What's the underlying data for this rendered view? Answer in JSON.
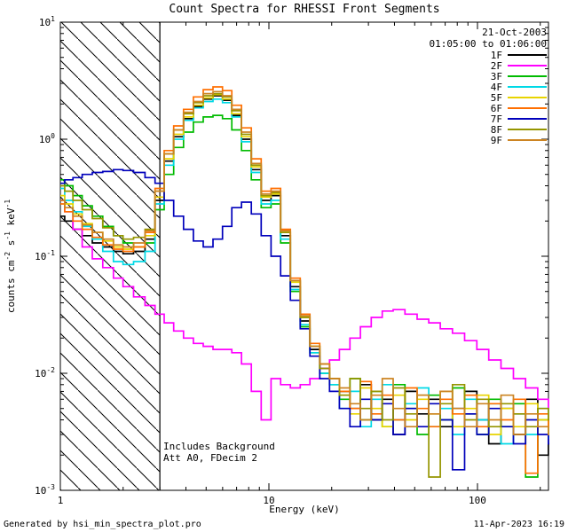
{
  "title": "Count Spectra for RHESSI Front Segments",
  "footer": {
    "left": "Generated by hsi_min_spectra_plot.pro",
    "right": "11-Apr-2023 16:19"
  },
  "chart_data": {
    "type": "line",
    "scale": "log-log",
    "title": "Count Spectra for RHESSI Front Segments",
    "xlabel": "Energy (keV)",
    "ylabel_segments": [
      {
        "t": "counts cm"
      },
      {
        "sup": "-2"
      },
      {
        "t": " s"
      },
      {
        "sup": "-1"
      },
      {
        "t": " keV"
      },
      {
        "sup": "-1"
      }
    ],
    "xlim": [
      1,
      219
    ],
    "ylim": [
      0.001,
      10
    ],
    "x_ticks": [
      {
        "v": 1,
        "label": "1"
      },
      {
        "v": 10,
        "label": "10"
      },
      {
        "v": 100,
        "label": "100"
      }
    ],
    "y_ticks": [
      {
        "v": 0.001,
        "base": "10",
        "exp": "-3"
      },
      {
        "v": 0.01,
        "base": "10",
        "exp": "-2"
      },
      {
        "v": 0.1,
        "base": "10",
        "exp": "-1"
      },
      {
        "v": 1,
        "base": "10",
        "exp": "0"
      },
      {
        "v": 10,
        "base": "10",
        "exp": "1"
      }
    ],
    "hatch_region": {
      "xmin": 1,
      "xmax": 3
    },
    "legend": {
      "date": "21-Oct-2003",
      "time": "01:05:00 to 01:06:00"
    },
    "annotations": [
      "Includes Background",
      "Att A0, FDecim 2"
    ],
    "energies": [
      1.0,
      1.1,
      1.2,
      1.35,
      1.5,
      1.7,
      1.9,
      2.1,
      2.4,
      2.7,
      3.0,
      3.3,
      3.7,
      4.1,
      4.6,
      5.1,
      5.7,
      6.3,
      7.0,
      7.8,
      8.7,
      9.7,
      10.8,
      12.0,
      13.4,
      14.9,
      16.6,
      18.5,
      20.6,
      23,
      26,
      29,
      33,
      37,
      42,
      48,
      55,
      62,
      71,
      81,
      93,
      106,
      121,
      139,
      159,
      182,
      208,
      230
    ],
    "series": [
      {
        "name": "1F",
        "color": "#000000",
        "values": [
          0.22,
          0.2,
          0.17,
          0.15,
          0.13,
          0.12,
          0.11,
          0.105,
          0.11,
          0.14,
          0.3,
          0.65,
          1.05,
          1.5,
          1.9,
          2.2,
          2.35,
          2.15,
          1.6,
          1.0,
          0.55,
          0.3,
          0.33,
          0.15,
          0.055,
          0.028,
          0.016,
          0.011,
          0.009,
          0.007,
          0.005,
          0.008,
          0.004,
          0.006,
          0.003,
          0.007,
          0.0045,
          0.006,
          0.0035,
          0.005,
          0.007,
          0.004,
          0.0025,
          0.005,
          0.003,
          0.006,
          0.002,
          0.0035
        ]
      },
      {
        "name": "2F",
        "color": "#ff00ff",
        "values": [
          0.3,
          0.24,
          0.17,
          0.12,
          0.095,
          0.08,
          0.065,
          0.055,
          0.045,
          0.038,
          0.032,
          0.027,
          0.023,
          0.02,
          0.018,
          0.017,
          0.016,
          0.016,
          0.015,
          0.012,
          0.007,
          0.004,
          0.009,
          0.008,
          0.0075,
          0.008,
          0.009,
          0.011,
          0.013,
          0.016,
          0.02,
          0.025,
          0.03,
          0.034,
          0.035,
          0.032,
          0.029,
          0.027,
          0.024,
          0.022,
          0.019,
          0.016,
          0.013,
          0.011,
          0.009,
          0.0075,
          0.006,
          0.005
        ]
      },
      {
        "name": "3F",
        "color": "#00bb00",
        "values": [
          0.45,
          0.4,
          0.33,
          0.27,
          0.22,
          0.18,
          0.15,
          0.13,
          0.12,
          0.13,
          0.25,
          0.5,
          0.85,
          1.15,
          1.4,
          1.55,
          1.6,
          1.5,
          1.2,
          0.8,
          0.45,
          0.26,
          0.28,
          0.13,
          0.05,
          0.025,
          0.015,
          0.01,
          0.008,
          0.006,
          0.009,
          0.004,
          0.007,
          0.0035,
          0.008,
          0.005,
          0.003,
          0.0065,
          0.004,
          0.0075,
          0.0045,
          0.003,
          0.006,
          0.0035,
          0.0055,
          0.0013,
          0.004,
          0.003
        ]
      },
      {
        "name": "4F",
        "color": "#00d9e6",
        "values": [
          0.38,
          0.3,
          0.24,
          0.18,
          0.14,
          0.11,
          0.09,
          0.085,
          0.09,
          0.11,
          0.28,
          0.6,
          1.0,
          1.45,
          1.85,
          2.1,
          2.2,
          2.05,
          1.55,
          0.95,
          0.52,
          0.28,
          0.3,
          0.14,
          0.052,
          0.026,
          0.015,
          0.01,
          0.008,
          0.005,
          0.007,
          0.0035,
          0.006,
          0.008,
          0.004,
          0.0055,
          0.0075,
          0.0035,
          0.005,
          0.003,
          0.006,
          0.004,
          0.0055,
          0.0025,
          0.0045,
          0.003,
          0.005,
          0.0028
        ]
      },
      {
        "name": "5F",
        "color": "#e8d400",
        "values": [
          0.33,
          0.28,
          0.23,
          0.19,
          0.16,
          0.135,
          0.12,
          0.115,
          0.12,
          0.15,
          0.32,
          0.68,
          1.1,
          1.55,
          1.95,
          2.25,
          2.4,
          2.2,
          1.65,
          1.05,
          0.58,
          0.32,
          0.34,
          0.16,
          0.06,
          0.03,
          0.017,
          0.012,
          0.009,
          0.0065,
          0.0045,
          0.0075,
          0.005,
          0.0035,
          0.0065,
          0.004,
          0.006,
          0.0045,
          0.007,
          0.0035,
          0.005,
          0.0065,
          0.003,
          0.005,
          0.0035,
          0.0055,
          0.004,
          0.003
        ]
      },
      {
        "name": "6F",
        "color": "#ff6f00",
        "values": [
          0.28,
          0.24,
          0.2,
          0.17,
          0.145,
          0.125,
          0.115,
          0.11,
          0.12,
          0.16,
          0.38,
          0.8,
          1.3,
          1.8,
          2.3,
          2.65,
          2.8,
          2.6,
          1.95,
          1.25,
          0.68,
          0.36,
          0.38,
          0.17,
          0.065,
          0.032,
          0.018,
          0.012,
          0.009,
          0.007,
          0.005,
          0.0085,
          0.0045,
          0.0065,
          0.004,
          0.0075,
          0.005,
          0.0035,
          0.006,
          0.0045,
          0.0065,
          0.0035,
          0.0055,
          0.004,
          0.006,
          0.0014,
          0.0045,
          0.0035
        ]
      },
      {
        "name": "7F",
        "color": "#0000bb",
        "values": [
          0.42,
          0.45,
          0.47,
          0.5,
          0.52,
          0.53,
          0.55,
          0.54,
          0.52,
          0.47,
          0.42,
          0.3,
          0.22,
          0.17,
          0.135,
          0.12,
          0.14,
          0.18,
          0.26,
          0.29,
          0.23,
          0.15,
          0.1,
          0.068,
          0.042,
          0.024,
          0.014,
          0.009,
          0.007,
          0.005,
          0.0035,
          0.006,
          0.004,
          0.0055,
          0.003,
          0.005,
          0.0035,
          0.0055,
          0.004,
          0.0015,
          0.0045,
          0.003,
          0.005,
          0.0035,
          0.0025,
          0.004,
          0.003,
          0.0025
        ]
      },
      {
        "name": "8F",
        "color": "#959500",
        "values": [
          0.4,
          0.36,
          0.3,
          0.25,
          0.21,
          0.175,
          0.15,
          0.14,
          0.145,
          0.17,
          0.36,
          0.75,
          1.2,
          1.65,
          2.05,
          2.35,
          2.45,
          2.3,
          1.75,
          1.1,
          0.6,
          0.33,
          0.35,
          0.16,
          0.062,
          0.03,
          0.017,
          0.011,
          0.009,
          0.0065,
          0.009,
          0.005,
          0.007,
          0.004,
          0.0075,
          0.0045,
          0.0065,
          0.0013,
          0.0055,
          0.008,
          0.004,
          0.006,
          0.0035,
          0.0055,
          0.0045,
          0.0035,
          0.005,
          0.004
        ]
      },
      {
        "name": "9F",
        "color": "#cc8422",
        "values": [
          0.3,
          0.26,
          0.22,
          0.185,
          0.16,
          0.14,
          0.125,
          0.12,
          0.13,
          0.165,
          0.36,
          0.75,
          1.2,
          1.7,
          2.1,
          2.45,
          2.55,
          2.35,
          1.8,
          1.15,
          0.62,
          0.34,
          0.36,
          0.165,
          0.062,
          0.031,
          0.017,
          0.012,
          0.009,
          0.0075,
          0.0055,
          0.004,
          0.0065,
          0.009,
          0.005,
          0.0035,
          0.0065,
          0.0045,
          0.007,
          0.005,
          0.0035,
          0.0055,
          0.004,
          0.0065,
          0.003,
          0.0045,
          0.0035,
          0.003
        ]
      }
    ]
  }
}
